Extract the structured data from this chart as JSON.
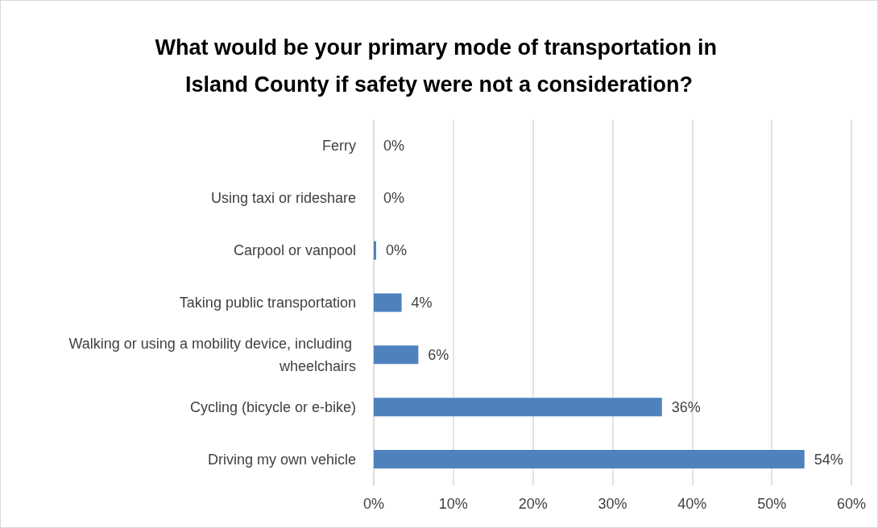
{
  "chart_data": {
    "type": "bar",
    "orientation": "horizontal",
    "title": "What would be your primary mode of transportation in Island County if safety were not a consideration?",
    "categories": [
      "Ferry",
      "Using taxi or rideshare",
      "Carpool or vanpool",
      "Taking public transportation",
      "Walking or using a mobility device, including wheelchairs",
      "Cycling (bicycle or e-bike)",
      "Driving my own vehicle"
    ],
    "values": [
      0,
      0,
      0.3,
      3.5,
      5.6,
      36.2,
      54.1
    ],
    "value_labels": [
      "0%",
      "0%",
      "0%",
      "4%",
      "6%",
      "36%",
      "54%"
    ],
    "color": "#4f81bd",
    "xlim": [
      0,
      60
    ],
    "xticks": [
      {
        "value": 0,
        "label": "0%"
      },
      {
        "value": 10,
        "label": "10%"
      },
      {
        "value": 20,
        "label": "20%"
      },
      {
        "value": 30,
        "label": "30%"
      },
      {
        "value": 40,
        "label": "40%"
      },
      {
        "value": 50,
        "label": "50%"
      },
      {
        "value": 60,
        "label": "60%"
      }
    ],
    "grid": "x"
  }
}
